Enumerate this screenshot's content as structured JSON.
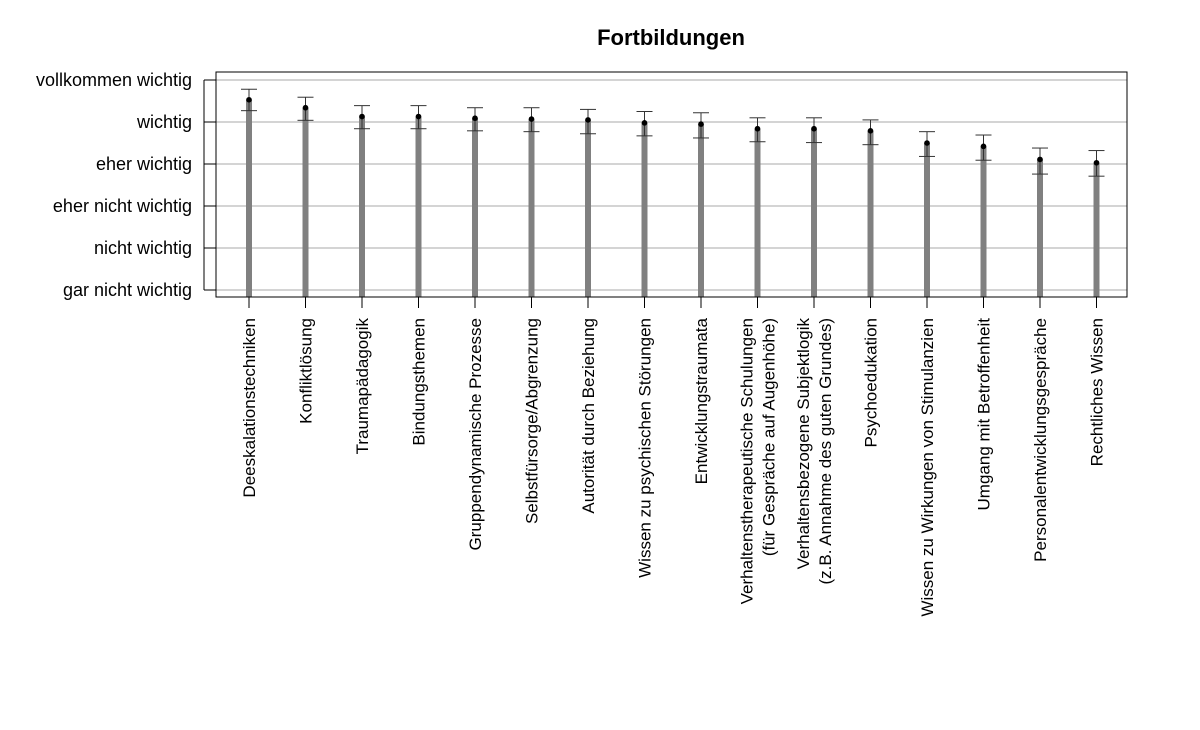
{
  "chart_data": {
    "type": "bar",
    "title": "Fortbildungen",
    "y_levels": [
      "gar nicht wichtig",
      "nicht wichtig",
      "eher nicht wichtig",
      "eher wichtig",
      "wichtig",
      "vollkommen wichtig"
    ],
    "ylim": [
      1,
      6
    ],
    "grid": true,
    "categories": [
      [
        "Deeskalationstechniken"
      ],
      [
        "Konfliktlösung"
      ],
      [
        "Traumapädagogik"
      ],
      [
        "Bindungsthemen"
      ],
      [
        "Gruppendynamische Prozesse"
      ],
      [
        "Selbstfürsorge/Abgrenzung"
      ],
      [
        "Autorität durch Beziehung"
      ],
      [
        "Wissen zu psychischen Störungen"
      ],
      [
        "Entwicklungstraumata"
      ],
      [
        "Verhaltenstherapeutische Schulungen",
        "(für Gespräche auf Augenhöhe)"
      ],
      [
        "Verhaltensbezogene Subjektlogik",
        "(z.B. Annahme des guten Grundes)"
      ],
      [
        "Psychoedukation"
      ],
      [
        "Wissen zu Wirkungen von Stimulanzien"
      ],
      [
        "Umgang mit Betroffenheit"
      ],
      [
        "Personalentwicklungsgespräche"
      ],
      [
        "Rechtliches Wissen"
      ]
    ],
    "means": [
      5.53,
      5.34,
      5.13,
      5.13,
      5.09,
      5.07,
      5.05,
      4.98,
      4.95,
      4.84,
      4.84,
      4.79,
      4.5,
      4.42,
      4.11,
      4.03
    ],
    "err_low": [
      5.27,
      5.04,
      4.84,
      4.84,
      4.79,
      4.77,
      4.72,
      4.67,
      4.62,
      4.53,
      4.51,
      4.46,
      4.18,
      4.09,
      3.76,
      3.71
    ],
    "err_high": [
      5.78,
      5.59,
      5.39,
      5.39,
      5.34,
      5.34,
      5.3,
      5.25,
      5.22,
      5.1,
      5.1,
      5.05,
      4.77,
      4.69,
      4.38,
      4.32
    ],
    "colors": {
      "bar": "#808080",
      "grid": "#a8a8a8",
      "axis": "#000000",
      "errorbar": "#333333",
      "point": "#000000"
    }
  }
}
